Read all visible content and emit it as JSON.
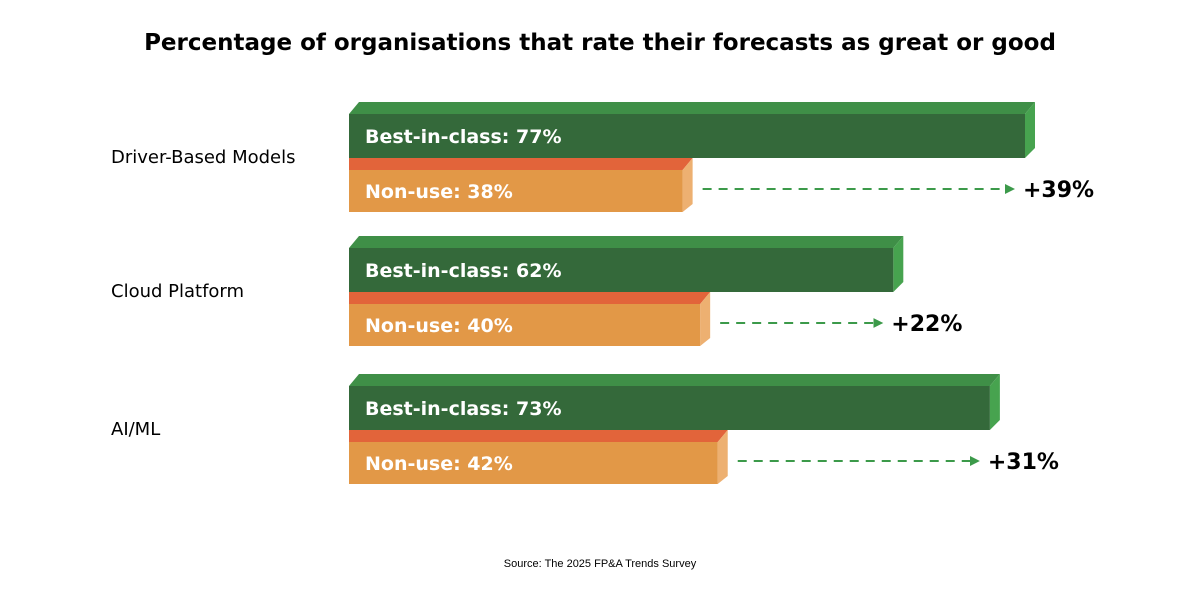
{
  "chart_data": {
    "type": "bar",
    "title": "Percentage of organisations that rate their forecasts as great or good",
    "orientation": "horizontal",
    "categories": [
      "Driver-Based Models",
      "Cloud Platform",
      "AI/ML"
    ],
    "series": [
      {
        "key": "best",
        "values": [
          77,
          62,
          73
        ],
        "labels": [
          "Best-in-class: 77%",
          "Best-in-class: 62%",
          "Best-in-class: 73%"
        ]
      },
      {
        "key": "nonuse",
        "values": [
          38,
          40,
          42
        ],
        "labels": [
          "Non-use: 38%",
          "Non-use: 40%",
          "Non-use: 42%"
        ]
      }
    ],
    "differences": [
      "+39%",
      "+22%",
      "+31%"
    ],
    "xlim": [
      0,
      77
    ],
    "grid": false,
    "legend": "none",
    "colors": {
      "best_front": "#34693A",
      "best_top": "#3F8F47",
      "best_side": "#47A34F",
      "nonuse_front": "#E29847",
      "nonuse_top": "#E2643A",
      "nonuse_side": "#EDB071",
      "arrow": "#3C9A4A"
    },
    "source": "Source: The 2025 FP&A Trends Survey"
  }
}
